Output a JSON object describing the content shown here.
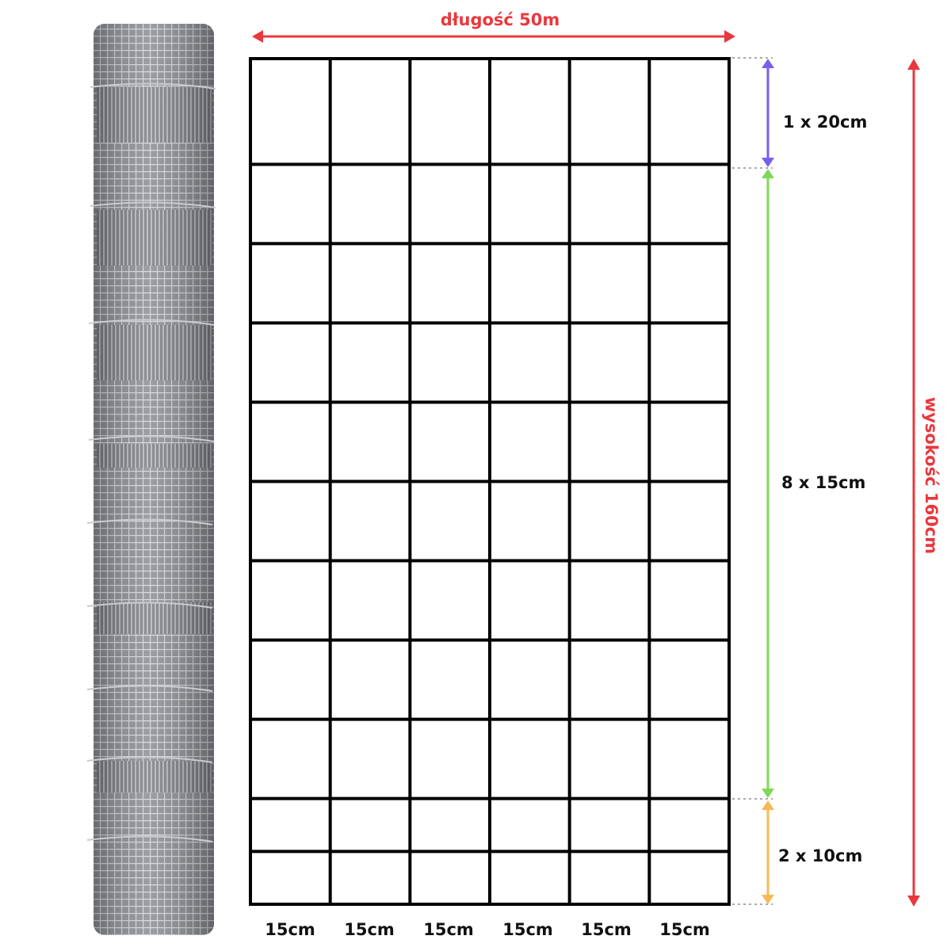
{
  "length_label": "długość 50m",
  "height_label": "wysokość 160cm",
  "segments": {
    "top": "1 x 20cm",
    "middle": "8 x 15cm",
    "bottom": "2 x 10cm"
  },
  "column_labels": [
    "15cm",
    "15cm",
    "15cm",
    "15cm",
    "15cm",
    "15cm"
  ],
  "rows_cm": [
    20,
    15,
    15,
    15,
    15,
    15,
    15,
    15,
    15,
    10,
    10
  ],
  "colors": {
    "total": "#e8383d",
    "top_segment": "#7b5cf0",
    "middle_segment": "#7ed957",
    "bottom_segment": "#f7b955",
    "grid": "#000000"
  },
  "product_image": "wire-fence-roll"
}
